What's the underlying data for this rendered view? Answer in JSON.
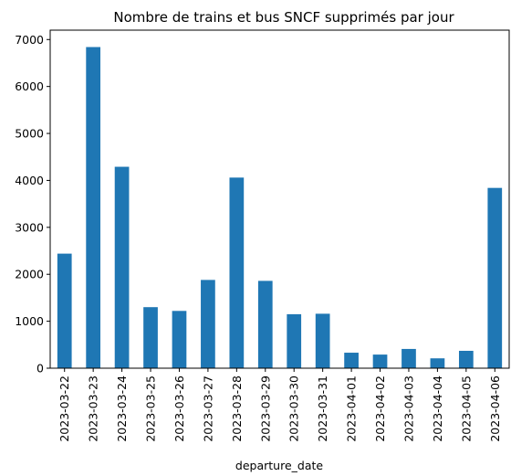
{
  "chart_data": {
    "type": "bar",
    "title": "Nombre de trains et bus SNCF supprimés par jour",
    "xlabel": "departure_date",
    "ylabel": "",
    "ylim": [
      0,
      7200
    ],
    "yticks": [
      0,
      1000,
      2000,
      3000,
      4000,
      5000,
      6000,
      7000
    ],
    "categories": [
      "2023-03-22",
      "2023-03-23",
      "2023-03-24",
      "2023-03-25",
      "2023-03-26",
      "2023-03-27",
      "2023-03-28",
      "2023-03-29",
      "2023-03-30",
      "2023-03-31",
      "2023-04-01",
      "2023-04-02",
      "2023-04-03",
      "2023-04-04",
      "2023-04-05",
      "2023-04-06"
    ],
    "values": [
      2440,
      6840,
      4290,
      1300,
      1220,
      1880,
      4060,
      1860,
      1150,
      1160,
      330,
      290,
      410,
      210,
      370,
      3840
    ],
    "bar_color": "#1f77b4",
    "grid": false,
    "legend": "none"
  }
}
